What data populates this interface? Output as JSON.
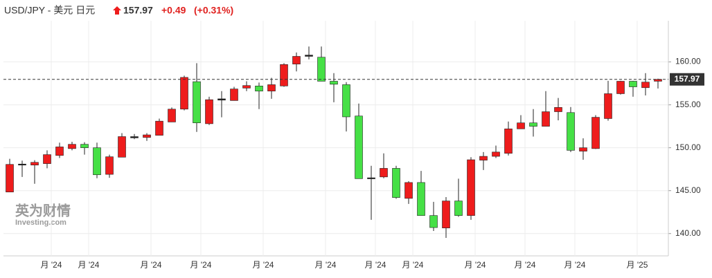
{
  "header": {
    "title": "USD/JPY - 美元 日元",
    "change": "+0.49",
    "change_pct": "(+0.31%)"
  },
  "watermark": {
    "brand": "英为财情",
    "site": "Investing.com"
  },
  "chart_data": {
    "type": "candlestick",
    "last": 157.97,
    "up_color": "#ee1c1c",
    "down_color": "#46e046",
    "doji_color": "#222222",
    "ylim": [
      137.4,
      164.8
    ],
    "yticks": [
      {
        "value": 140,
        "label": "140.00"
      },
      {
        "value": 145,
        "label": "145.00"
      },
      {
        "value": 150,
        "label": "150.00"
      },
      {
        "value": 155,
        "label": "155.00"
      },
      {
        "value": 160,
        "label": "160.00"
      }
    ],
    "grid": true,
    "categories": [
      null,
      null,
      null,
      "月 '24",
      null,
      null,
      "月 '24",
      null,
      null,
      null,
      null,
      "月 '24",
      null,
      null,
      null,
      "月 '24",
      null,
      null,
      null,
      null,
      "月 '24",
      null,
      null,
      null,
      null,
      "月 '24",
      null,
      null,
      null,
      "月 '24",
      null,
      null,
      "月 '24",
      null,
      null,
      null,
      null,
      "月 '24",
      null,
      null,
      null,
      "月 '24",
      null,
      null,
      null,
      "月 '24",
      null,
      null,
      null,
      null,
      "月 '25",
      null,
      null
    ],
    "open": [
      144.84,
      148.1,
      147.98,
      148.15,
      149.1,
      149.9,
      150.4,
      150.0,
      146.9,
      148.9,
      151.3,
      151.2,
      151.45,
      153.0,
      154.5,
      157.7,
      152.8,
      155.55,
      155.5,
      156.95,
      157.2,
      156.6,
      157.2,
      159.75,
      160.8,
      160.55,
      157.75,
      157.35,
      153.7,
      146.5,
      146.6,
      147.6,
      144.1,
      145.95,
      142.1,
      140.65,
      143.8,
      142.1,
      148.55,
      149.0,
      149.35,
      152.2,
      152.9,
      152.5,
      154.2,
      154.1,
      149.6,
      149.9,
      153.4,
      156.3,
      157.75,
      157.0,
      157.75
    ],
    "high": [
      148.71,
      148.5,
      148.55,
      149.7,
      150.6,
      150.7,
      150.65,
      150.6,
      149.2,
      151.7,
      151.6,
      151.7,
      153.4,
      154.7,
      158.4,
      159.85,
      155.95,
      156.6,
      157.1,
      157.75,
      157.6,
      158.15,
      159.85,
      161.1,
      161.8,
      161.8,
      158.7,
      157.65,
      155.15,
      147.9,
      149.35,
      147.9,
      146.1,
      147.3,
      143.7,
      144.25,
      146.4,
      148.9,
      149.5,
      150.25,
      153.05,
      153.8,
      154.5,
      156.6,
      155.8,
      154.75,
      151.1,
      153.8,
      157.8,
      157.8,
      157.8,
      158.7,
      158.05
    ],
    "low": [
      144.84,
      146.6,
      145.8,
      147.6,
      148.8,
      149.7,
      149.2,
      146.45,
      146.5,
      148.9,
      151.0,
      150.8,
      151.45,
      153.0,
      154.35,
      151.85,
      152.65,
      153.55,
      155.5,
      156.6,
      154.5,
      155.7,
      157.1,
      158.9,
      160.3,
      157.75,
      155.3,
      151.9,
      146.4,
      141.6,
      146.45,
      144.05,
      143.45,
      142.1,
      140.3,
      139.5,
      141.95,
      141.6,
      147.4,
      148.8,
      149.1,
      152.2,
      151.3,
      152.5,
      153.2,
      149.5,
      148.6,
      149.85,
      153.15,
      156.2,
      155.95,
      156.1,
      156.9
    ],
    "close": [
      148.06,
      148.0,
      148.3,
      149.2,
      150.1,
      150.4,
      150.0,
      146.85,
      148.95,
      151.3,
      151.15,
      151.5,
      153.1,
      154.5,
      158.2,
      152.9,
      155.6,
      155.7,
      156.85,
      157.25,
      156.6,
      157.35,
      159.7,
      160.65,
      160.65,
      157.75,
      157.4,
      153.6,
      146.4,
      146.4,
      147.6,
      144.2,
      145.95,
      142.1,
      140.7,
      143.8,
      142.1,
      148.6,
      149.0,
      149.5,
      152.2,
      152.9,
      152.5,
      154.2,
      154.7,
      149.7,
      150.0,
      153.55,
      156.3,
      157.75,
      157.1,
      157.65,
      157.97
    ]
  }
}
